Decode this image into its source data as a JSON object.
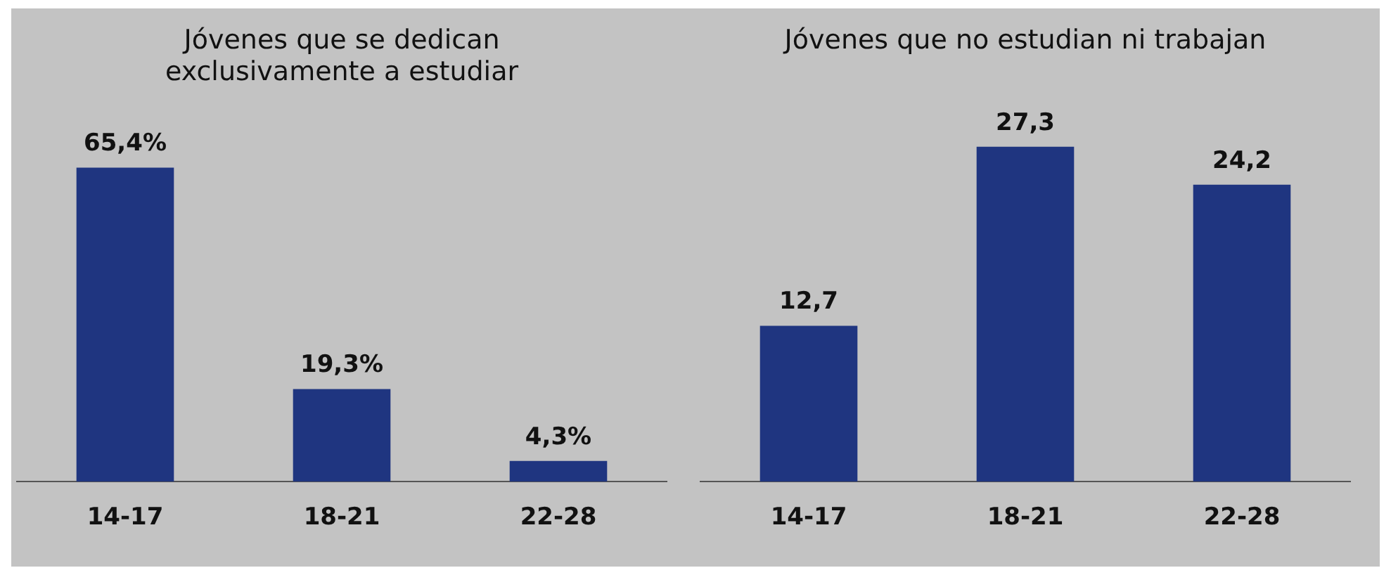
{
  "chart_data": [
    {
      "type": "bar",
      "title": "Jóvenes que se dedican exclusivamente a estudiar",
      "categories": [
        "14-17",
        "18-21",
        "22-28"
      ],
      "values": [
        65.4,
        19.3,
        4.3
      ],
      "value_labels": [
        "65,4%",
        "19,3%",
        "4,3%"
      ],
      "color": "#1f3580",
      "tick_labels": "x",
      "grid": false,
      "legend": false
    },
    {
      "type": "bar",
      "title": "Jóvenes que no estudian ni trabajan",
      "categories": [
        "14-17",
        "18-21",
        "22-28"
      ],
      "values": [
        12.7,
        27.3,
        24.2
      ],
      "value_labels": [
        "12,7",
        "27,3",
        "24,2"
      ],
      "color": "#1f3580",
      "tick_labels": "x",
      "grid": false,
      "legend": false
    }
  ]
}
